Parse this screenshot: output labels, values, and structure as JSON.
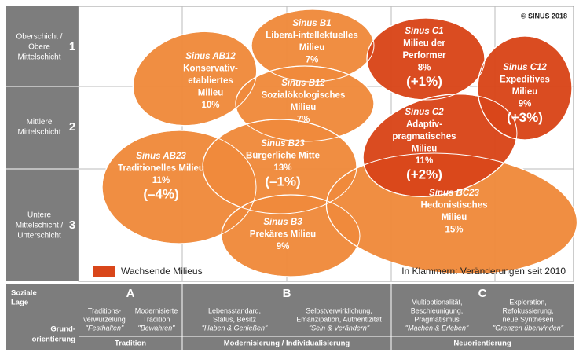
{
  "copyright": "© SINUS 2018",
  "rows": [
    {
      "lines": [
        "Oberschicht /",
        "Obere",
        "Mittelschicht"
      ],
      "number": "1"
    },
    {
      "lines": [
        "Mittlere",
        "Mittelschicht"
      ],
      "number": "2"
    },
    {
      "lines": [
        "Untere",
        "Mittelschicht /",
        "Unterschicht"
      ],
      "number": "3"
    }
  ],
  "milieus": [
    {
      "code": "Sinus AB12",
      "name": [
        "Konservativ-",
        "etabliertes",
        "Milieu"
      ],
      "share": "10%",
      "growing": false
    },
    {
      "code": "Sinus B1",
      "name": [
        "Liberal-intellektuelles",
        "Milieu"
      ],
      "share": "7%",
      "growing": false
    },
    {
      "code": "Sinus B12",
      "name": [
        "Sozialökologisches",
        "Milieu"
      ],
      "share": "7%",
      "growing": false
    },
    {
      "code": "Sinus AB23",
      "name": [
        "Traditionelles Milieu"
      ],
      "share": "11%",
      "change": "(–4%)",
      "growing": false
    },
    {
      "code": "Sinus B23",
      "name": [
        "Bürgerliche Mitte"
      ],
      "share": "13%",
      "change": "(–1%)",
      "growing": false
    },
    {
      "code": "Sinus B3",
      "name": [
        "Prekäres Milieu"
      ],
      "share": "9%",
      "growing": false
    },
    {
      "code": "Sinus BC23",
      "name": [
        "Hedonistisches",
        "Milieu"
      ],
      "share": "15%",
      "growing": false
    },
    {
      "code": "Sinus C1",
      "name": [
        "Milieu der",
        "Performer"
      ],
      "share": "8%",
      "change": "(+1%)",
      "growing": true
    },
    {
      "code": "Sinus C2",
      "name": [
        "Adaptiv-",
        "pragmatisches",
        "Milieu"
      ],
      "share": "11%",
      "change": "(+2%)",
      "growing": true
    },
    {
      "code": "Sinus C12",
      "name": [
        "Expeditives",
        "Milieu"
      ],
      "share": "9%",
      "change": "(+3%)",
      "growing": true
    }
  ],
  "legend": "Wachsende Milieus",
  "note": "In Klammern: Veränderungen seit 2010",
  "bottom": {
    "soziale_lage": [
      "Soziale",
      "Lage"
    ],
    "grundorientierung": [
      "Grund-",
      "orientierung"
    ],
    "sections": [
      {
        "letter": "A",
        "label": "Tradition",
        "columns": [
          {
            "lines": [
              "Traditions-",
              "verwurzelung"
            ],
            "motto": "\"Festhalten\""
          },
          {
            "lines": [
              "Modernisierte",
              "Tradition"
            ],
            "motto": "\"Bewahren\""
          }
        ]
      },
      {
        "letter": "B",
        "label": "Modernisierung / Individualisierung",
        "columns": [
          {
            "lines": [
              "Lebensstandard,",
              "Status, Besitz"
            ],
            "motto": "\"Haben & Genießen\""
          },
          {
            "lines": [
              "Selbstverwirklichung,",
              "Emanzipation, Authentizität"
            ],
            "motto": "\"Sein & Verändern\""
          }
        ]
      },
      {
        "letter": "C",
        "label": "Neuorientierung",
        "columns": [
          {
            "lines": [
              "Multioptionalität,",
              "Beschleunigung,",
              "Pragmatismus"
            ],
            "motto": "\"Machen & Erleben\""
          },
          {
            "lines": [
              "Exploration,",
              "Refokussierung,",
              "neue Synthesen"
            ],
            "motto": "\"Grenzen überwinden\""
          }
        ]
      }
    ]
  }
}
